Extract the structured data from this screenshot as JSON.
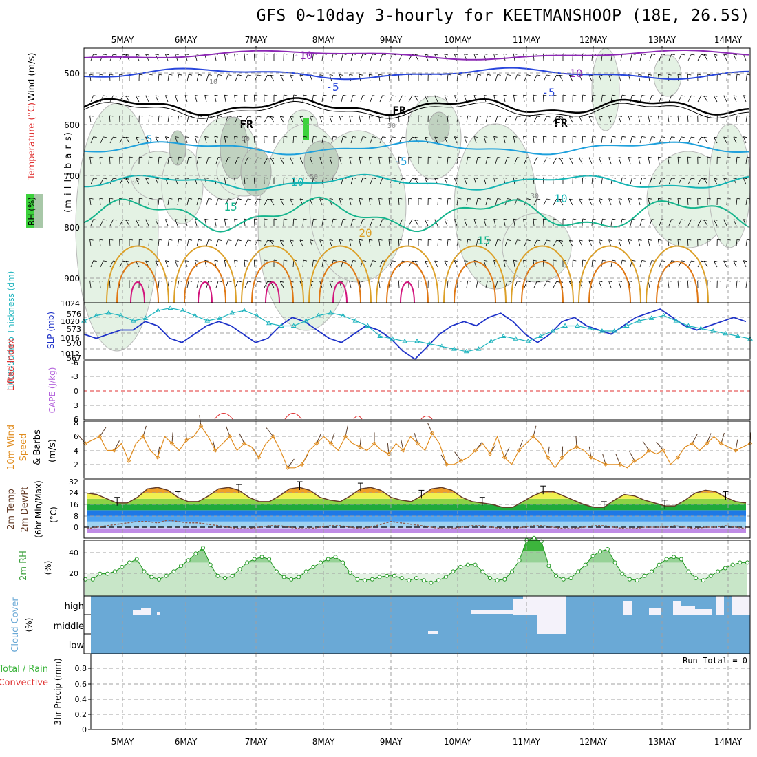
{
  "title": "GFS 0~10day 3-hourly for KEETMANSHOOP (18E, 26.5S)",
  "dates": [
    "5MAY",
    "6MAY",
    "7MAY",
    "8MAY",
    "9MAY",
    "10MAY",
    "11MAY",
    "12MAY",
    "13MAY",
    "14MAY"
  ],
  "colors": {
    "rh": "#3cd23c",
    "temperature": "#e03232",
    "wind": "#000000",
    "thickness": "#1eb4be",
    "slp": "#1e32c8",
    "lifted_index": "#e03232",
    "cape": "#b464dc",
    "wind10m": "#e08c1e",
    "rh2m": "#3ca03c",
    "cloud": "#6aa9d6",
    "rain": "#3cb43c",
    "convective": "#e03232"
  },
  "panels": {
    "upper": {
      "label_wind": "Wind (m/s)",
      "label_temp": "Temperature (°C)",
      "label_rh": "RH (%)",
      "ylabel": "(m i l l i b a r s)",
      "yticks": [
        "500",
        "600",
        "700",
        "800",
        "900"
      ],
      "contour_labels": [
        "-10",
        "-10",
        "-5",
        "-5",
        "FR",
        "FR",
        "FR",
        "-5",
        "-5",
        "10",
        "10",
        "15",
        "15",
        "20",
        "10",
        "30",
        "50",
        "50",
        "30",
        "30"
      ]
    },
    "slp": {
      "label_thick": "1000-500mb Thickness (dm)",
      "label_slp": "SLP (mb)",
      "left_ticks": [
        "576",
        "573",
        "570",
        "567"
      ],
      "right_ticks": [
        "1024",
        "1020",
        "1016",
        "1012"
      ]
    },
    "li": {
      "label_li": "Lifted Index",
      "label_cape": "CAPE (J/kg)",
      "ticks": [
        "-6",
        "-3",
        "0",
        "3",
        "6"
      ]
    },
    "wind10m": {
      "label1": "10m Wind",
      "label2": "Speed",
      "label3": "& Barbs",
      "unit": "(m/s)",
      "ticks": [
        "8",
        "6",
        "4",
        "2"
      ]
    },
    "temp2m": {
      "label1": "2m Temp",
      "label2": "2m DewPt",
      "label3": "(6hr Min/Max)",
      "unit": "(°C)",
      "ticks": [
        "32",
        "24",
        "16",
        "8",
        "0"
      ]
    },
    "rh2m": {
      "label": "2m RH",
      "unit": "(%)",
      "ticks": [
        "40",
        "20"
      ]
    },
    "cloud": {
      "label": "Cloud Cover",
      "unit": "(%)",
      "levels": [
        "high",
        "middle",
        "low"
      ]
    },
    "precip": {
      "label1": "Total / Rain",
      "label2": "Convective",
      "label3": "3hr Precip (mm)",
      "run_total": "Run Total = 0",
      "ticks": [
        "0.8",
        "0.6",
        "0.4",
        "0.2",
        "0"
      ]
    }
  },
  "chart_data": [
    {
      "type": "line",
      "name": "SLP and 1000-500mb thickness",
      "series": [
        {
          "name": "SLP (mb)",
          "values": [
            1017,
            1016,
            1017,
            1018,
            1018,
            1020,
            1019,
            1016,
            1015,
            1017,
            1019,
            1020,
            1019,
            1017,
            1015,
            1016,
            1019,
            1021,
            1020,
            1018,
            1016,
            1015,
            1017,
            1019,
            1018,
            1016,
            1013,
            1011,
            1014,
            1017,
            1019,
            1020,
            1019,
            1021,
            1022,
            1020,
            1017,
            1015,
            1017,
            1020,
            1021,
            1019,
            1018,
            1017,
            1019,
            1021,
            1022,
            1023,
            1021,
            1019,
            1018,
            1019,
            1020,
            1021,
            1020
          ]
        },
        {
          "name": "1000-500mb Thickness (dm)",
          "values": [
            574,
            575,
            575.5,
            575,
            574,
            574.5,
            576,
            576.5,
            576,
            575,
            574,
            574.5,
            575.5,
            576,
            575,
            573.5,
            573,
            573,
            574,
            575,
            575.5,
            575,
            574,
            573,
            571,
            570.5,
            570,
            570,
            569.5,
            569,
            568.5,
            568,
            568.5,
            570,
            571,
            570.5,
            570,
            571,
            572,
            573,
            573,
            572.5,
            572,
            572,
            573,
            574,
            574.5,
            575,
            574,
            573,
            572.5,
            572,
            571.5,
            571,
            570.5
          ]
        }
      ],
      "yleft": [
        567,
        576
      ],
      "yright": [
        1012,
        1024
      ]
    },
    {
      "type": "line",
      "name": "10m Wind Speed",
      "series": [
        {
          "name": "10m Wind Speed (m/s)",
          "values": [
            5,
            5.5,
            6,
            4,
            4,
            5,
            2.5,
            5,
            6,
            4,
            3,
            6,
            5,
            4,
            5.5,
            6,
            7.5,
            6,
            4,
            5,
            6,
            4,
            5,
            4.5,
            3,
            5,
            6,
            4,
            1.5,
            1.5,
            2,
            4,
            5,
            6,
            5,
            4,
            6,
            5,
            4.5,
            4,
            5,
            4,
            3.5,
            5,
            4,
            6,
            5,
            4,
            6.5,
            5,
            2,
            2,
            2.5,
            3,
            4,
            5,
            3.5,
            6,
            3,
            2,
            4,
            5,
            6,
            5,
            3,
            1.5,
            3,
            4,
            4.5,
            4,
            3,
            2.5,
            2,
            2,
            2,
            1.5,
            2.5,
            3,
            4,
            3.5,
            4,
            2,
            3,
            4.5,
            5,
            4,
            5,
            6,
            5,
            4.5,
            4,
            4.5,
            5
          ]
        }
      ],
      "ylim": [
        0,
        8
      ]
    },
    {
      "type": "area",
      "name": "2m Temp",
      "series": [
        {
          "name": "2m Temp (°C)",
          "values": [
            24,
            23,
            20,
            17,
            17,
            21,
            27,
            28,
            26,
            21,
            18,
            18,
            22,
            27,
            28,
            26,
            21,
            18,
            18,
            22,
            27,
            28,
            26,
            21,
            19,
            18,
            22,
            27,
            28,
            26,
            21,
            19,
            18,
            22,
            27,
            28,
            26,
            21,
            18,
            17,
            16,
            14,
            14,
            18,
            22,
            25,
            25,
            22,
            19,
            16,
            14,
            14,
            19,
            23,
            22,
            19,
            17,
            15,
            15,
            19,
            24,
            26,
            25,
            21,
            18,
            17
          ]
        },
        {
          "name": "2m DewPt (°C)",
          "values": [
            -1,
            0,
            1,
            2,
            3,
            4,
            4,
            3,
            5,
            4,
            3,
            3,
            2,
            1,
            0,
            -1,
            -1,
            0,
            1,
            1,
            0,
            -1,
            -1,
            0,
            1,
            1,
            0,
            -1,
            0,
            2,
            4,
            3,
            2,
            1,
            0,
            -1,
            -1,
            0,
            1,
            1,
            0,
            -1,
            -1,
            0,
            1,
            1,
            0,
            -1,
            -1,
            0,
            1,
            1,
            0,
            -1,
            -1,
            0,
            0,
            0,
            1,
            0,
            -1,
            0,
            0,
            1,
            0,
            -1
          ]
        }
      ],
      "ylim": [
        -4,
        32
      ]
    },
    {
      "type": "area",
      "name": "2m RH",
      "series": [
        {
          "name": "2m RH (%)",
          "values": [
            15,
            15,
            20,
            20,
            22,
            26,
            30,
            33,
            22,
            17,
            15,
            18,
            22,
            27,
            32,
            38,
            43,
            28,
            18,
            16,
            18,
            24,
            30,
            33,
            35,
            33,
            22,
            17,
            15,
            17,
            22,
            26,
            30,
            33,
            35,
            30,
            21,
            15,
            14,
            15,
            17,
            18,
            18,
            16,
            14,
            16,
            14,
            12,
            14,
            17,
            22,
            26,
            28,
            28,
            22,
            16,
            14,
            15,
            22,
            32,
            50,
            52,
            49,
            27,
            18,
            15,
            16,
            22,
            28,
            36,
            40,
            42,
            30,
            20,
            15,
            14,
            18,
            22,
            28,
            33,
            35,
            33,
            22,
            16,
            14,
            18,
            22,
            25,
            28,
            30,
            30
          ]
        }
      ],
      "ylim": [
        0,
        50
      ]
    },
    {
      "type": "line",
      "name": "3hr Precip",
      "series": [
        {
          "name": "3hr Precip (mm)",
          "values": [
            0
          ]
        }
      ],
      "ylim": [
        0,
        1
      ]
    }
  ]
}
